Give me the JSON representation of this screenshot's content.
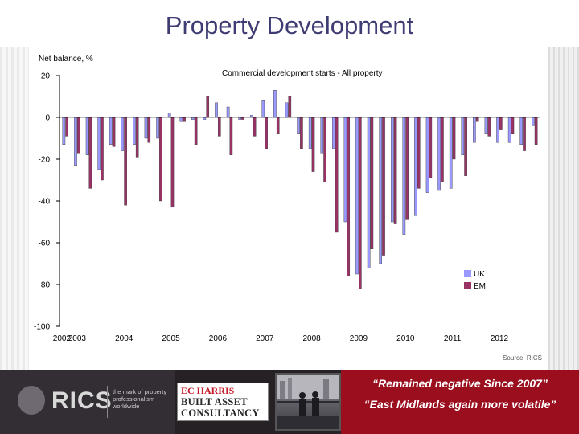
{
  "slide": {
    "title": "Property Development"
  },
  "chart_data": {
    "type": "bar",
    "title": "Commercial development starts - All property",
    "ylabel": "Net balance, %",
    "source": "Source: RICS",
    "ylim": [
      -100,
      20
    ],
    "yticks": [
      20,
      0,
      -20,
      -40,
      -60,
      -80,
      -100
    ],
    "xticks": [
      "2002",
      "2003",
      "2004",
      "2005",
      "2006",
      "2007",
      "2008",
      "2009",
      "2010",
      "2011",
      "2012"
    ],
    "grid": false,
    "legend_position": "bottom-right",
    "colors": {
      "UK": "#9999ff",
      "EM": "#993366"
    },
    "categories": [
      "Q4 2002",
      "Q1 2003",
      "Q2 2003",
      "Q3 2003",
      "Q4 2003",
      "Q1 2004",
      "Q2 2004",
      "Q3 2004",
      "Q4 2004",
      "Q1 2005",
      "Q2 2005",
      "Q3 2005",
      "Q4 2005",
      "Q1 2006",
      "Q2 2006",
      "Q3 2006",
      "Q4 2006",
      "Q1 2007",
      "Q2 2007",
      "Q3 2007",
      "Q4 2007",
      "Q1 2008",
      "Q2 2008",
      "Q3 2008",
      "Q4 2008",
      "Q1 2009",
      "Q2 2009",
      "Q3 2009",
      "Q4 2009",
      "Q1 2010",
      "Q2 2010",
      "Q3 2010",
      "Q4 2010",
      "Q1 2011",
      "Q2 2011",
      "Q3 2011",
      "Q4 2011",
      "Q1 2012",
      "Q2 2012",
      "Q3 2012",
      "Q4 2012"
    ],
    "series": [
      {
        "name": "UK",
        "values": [
          -13,
          -23,
          -18,
          -25,
          -13,
          -16,
          -13,
          -10,
          -10,
          2,
          -2,
          -1,
          -1,
          7,
          5,
          -1,
          1,
          8,
          13,
          7,
          -8,
          -15,
          -17,
          -15,
          -50,
          -75,
          -72,
          -70,
          -50,
          -56,
          -47,
          -36,
          -35,
          -34,
          -18,
          -12,
          -8,
          -12,
          -12,
          -13,
          -4
        ]
      },
      {
        "name": "EM",
        "values": [
          -9,
          -17,
          -34,
          -30,
          -14,
          -42,
          -19,
          -12,
          -40,
          -43,
          -2,
          -13,
          10,
          -9,
          -18,
          -1,
          -9,
          -15,
          -8,
          10,
          -15,
          -26,
          -31,
          -55,
          -76,
          -82,
          -63,
          -66,
          -51,
          -49,
          -34,
          -29,
          -31,
          -20,
          -28,
          -2,
          -9,
          -6,
          -8,
          -16,
          -13
        ]
      }
    ]
  },
  "footer": {
    "rics_name": "RICS",
    "rics_tagline": "the mark of property professionalism worldwide",
    "partner_line1": "EC HARRIS",
    "partner_line2": "BUILT ASSET",
    "partner_line3": "CONSULTANCY",
    "quote1": "“Remained negative Since 2007”",
    "quote2": "“East Midlands again more volatile”"
  }
}
